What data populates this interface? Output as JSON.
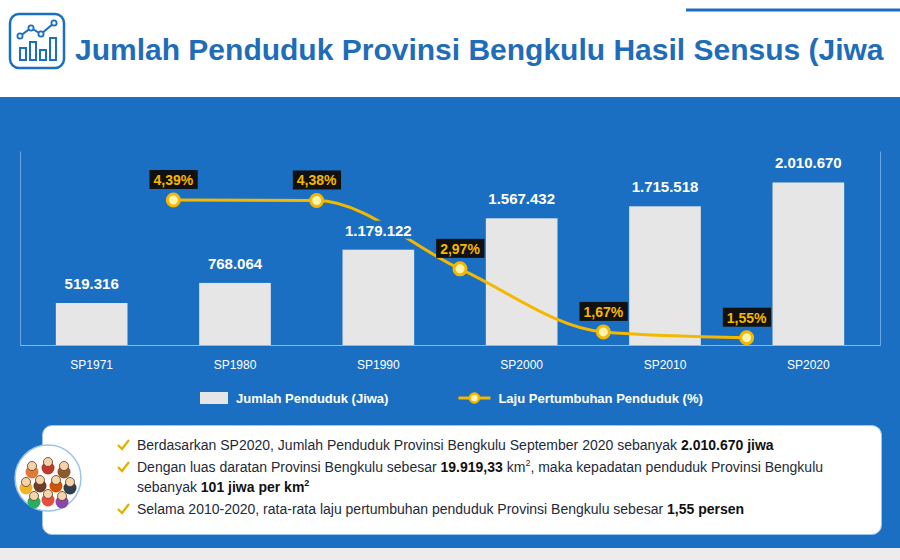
{
  "header": {
    "title": "Jumlah Penduduk Provinsi Bengkulu Hasil Sensus (Jiwa"
  },
  "chart_data": {
    "type": "bar",
    "categories": [
      "SP1971",
      "SP1980",
      "SP1990",
      "SP2000",
      "SP2010",
      "SP2020"
    ],
    "series": [
      {
        "name": "Jumlah Penduduk (Jiwa)",
        "type": "bar",
        "color": "#e6e6e6",
        "values": [
          519316,
          768064,
          1179122,
          1567432,
          1715518,
          2010670
        ],
        "value_labels": [
          "519.316",
          "768.064",
          "1.179.122",
          "1.567.432",
          "1.715.518",
          "2.010.670"
        ]
      },
      {
        "name": "Laju Pertumbuhan Penduduk (%)",
        "type": "line",
        "axis": "y2",
        "color": "#f5b800",
        "marker": "circle",
        "values": [
          null,
          4.39,
          4.38,
          2.97,
          1.67,
          1.55
        ],
        "value_labels": [
          null,
          "4,39%",
          "4,38%",
          "2,97%",
          "1,67%",
          "1,55%"
        ]
      }
    ],
    "ylim": [
      0,
      2400000
    ],
    "yticks": [],
    "y2lim": [
      1.4,
      5.4
    ],
    "y2ticks": [],
    "tick_labels": "x",
    "data_labels": true,
    "legend": "bottom"
  },
  "notes": [
    [
      {
        "text": "Berdasarkan SP2020, Jumlah Penduduk Provinsi Bengkulu September 2020 sebanyak ",
        "style": "normal"
      },
      {
        "text": "2.010.670 jiwa",
        "style": "bold"
      }
    ],
    [
      {
        "text": "Dengan luas daratan Provinsi Bengkulu sebesar ",
        "style": "normal"
      },
      {
        "text": "19.919,33",
        "style": "bold"
      },
      {
        "text": " km",
        "style": "normal"
      },
      {
        "text": "2",
        "style": "sup"
      },
      {
        "text": ", maka kepadatan penduduk Provinsi Bengkulu sebanyak ",
        "style": "normal"
      },
      {
        "text": "101 jiwa per km",
        "style": "bold"
      },
      {
        "text": "2",
        "style": "bold-sup"
      }
    ],
    [
      {
        "text": "Selama 2010-2020, rata-rata laju pertumbuhan penduduk Provinsi Bengkulu sebesar ",
        "style": "normal"
      },
      {
        "text": "1,55 persen",
        "style": "bold"
      }
    ]
  ]
}
